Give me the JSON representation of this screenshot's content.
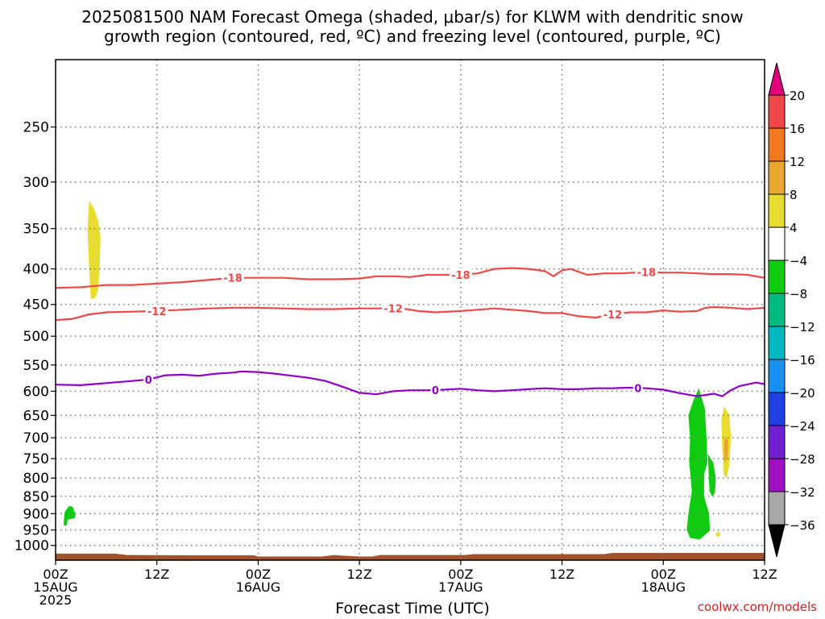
{
  "title": {
    "line1": "2025081500 NAM Forecast Omega (shaded, μbar/s) for KLWM with dendritic snow",
    "line2": "growth region (contoured, red, ºC) and freezing level (contoured, purple, ºC)"
  },
  "credit": "coolwx.com/models",
  "chart_data": {
    "type": "heatmap",
    "xlabel": "Forecast Time (UTC)",
    "ylabel": "",
    "x_unit": "forecast hour",
    "xlim": [
      0,
      84
    ],
    "y_scale": "log-pressure, inverted",
    "ylim_hPa": [
      1050,
      200
    ],
    "grid": true,
    "x_ticks": [
      {
        "x": 0,
        "labels": [
          "00Z",
          "15AUG",
          "2025"
        ]
      },
      {
        "x": 12,
        "labels": [
          "12Z"
        ]
      },
      {
        "x": 24,
        "labels": [
          "00Z",
          "16AUG"
        ]
      },
      {
        "x": 36,
        "labels": [
          "12Z"
        ]
      },
      {
        "x": 48,
        "labels": [
          "00Z",
          "17AUG"
        ]
      },
      {
        "x": 60,
        "labels": [
          "12Z"
        ]
      },
      {
        "x": 72,
        "labels": [
          "00Z",
          "18AUG"
        ]
      },
      {
        "x": 84,
        "labels": [
          "12Z"
        ]
      }
    ],
    "y_ticks": [
      250,
      300,
      350,
      400,
      450,
      500,
      550,
      600,
      650,
      700,
      750,
      800,
      850,
      900,
      950,
      1000
    ],
    "colorbar": {
      "unit": "μbar/s",
      "labels": [
        "20",
        "16",
        "12",
        "8",
        "4",
        "−4",
        "−8",
        "−12",
        "−16",
        "−20",
        "−24",
        "−28",
        "−32",
        "−36"
      ],
      "bins": [
        {
          "range": [
            20,
            null
          ],
          "color": "#e0007a"
        },
        {
          "range": [
            16,
            20
          ],
          "color": "#f04848"
        },
        {
          "range": [
            12,
            16
          ],
          "color": "#f07820"
        },
        {
          "range": [
            8,
            12
          ],
          "color": "#e8a830"
        },
        {
          "range": [
            4,
            8
          ],
          "color": "#e8dc30"
        },
        {
          "range": [
            -4,
            4
          ],
          "color": "#ffffff"
        },
        {
          "range": [
            -8,
            -4
          ],
          "color": "#10cc10"
        },
        {
          "range": [
            -12,
            -8
          ],
          "color": "#00bb80"
        },
        {
          "range": [
            -16,
            -12
          ],
          "color": "#00b8c0"
        },
        {
          "range": [
            -20,
            -16
          ],
          "color": "#1890f0"
        },
        {
          "range": [
            -24,
            -20
          ],
          "color": "#2040e0"
        },
        {
          "range": [
            -28,
            -24
          ],
          "color": "#7020d0"
        },
        {
          "range": [
            -32,
            -28
          ],
          "color": "#a010c0"
        },
        {
          "range": [
            -36,
            -32
          ],
          "color": "#a8a8a8"
        },
        {
          "range": [
            null,
            -36
          ],
          "color": "#000000"
        }
      ]
    },
    "contours": [
      {
        "value": -18,
        "label": "-18",
        "color": "#f04848",
        "label_x": [
          21,
          48,
          70
        ],
        "points": [
          [
            0,
            426
          ],
          [
            3,
            425
          ],
          [
            6,
            422
          ],
          [
            9,
            422
          ],
          [
            12,
            420
          ],
          [
            15,
            418
          ],
          [
            18,
            415
          ],
          [
            21,
            412
          ],
          [
            24,
            412
          ],
          [
            27,
            412
          ],
          [
            30,
            414
          ],
          [
            33,
            414
          ],
          [
            36,
            413
          ],
          [
            38,
            410
          ],
          [
            40,
            410
          ],
          [
            42,
            411
          ],
          [
            44,
            408
          ],
          [
            46,
            408
          ],
          [
            48,
            408
          ],
          [
            50,
            406
          ],
          [
            52,
            400
          ],
          [
            54,
            399
          ],
          [
            56,
            400
          ],
          [
            58,
            403
          ],
          [
            59,
            410
          ],
          [
            60,
            402
          ],
          [
            61,
            400
          ],
          [
            62,
            404
          ],
          [
            63,
            408
          ],
          [
            65,
            406
          ],
          [
            67,
            406
          ],
          [
            70,
            404
          ],
          [
            72,
            405
          ],
          [
            74,
            405
          ],
          [
            76,
            406
          ],
          [
            78,
            407
          ],
          [
            80,
            407
          ],
          [
            82,
            408
          ],
          [
            84,
            412
          ]
        ]
      },
      {
        "value": -12,
        "label": "-12",
        "color": "#f04848",
        "label_x": [
          12,
          40,
          66
        ],
        "points": [
          [
            0,
            474
          ],
          [
            2,
            472
          ],
          [
            4,
            465
          ],
          [
            6,
            462
          ],
          [
            9,
            461
          ],
          [
            12,
            460
          ],
          [
            15,
            458
          ],
          [
            18,
            456
          ],
          [
            21,
            455
          ],
          [
            24,
            455
          ],
          [
            27,
            456
          ],
          [
            30,
            457
          ],
          [
            33,
            457
          ],
          [
            36,
            456
          ],
          [
            39,
            456
          ],
          [
            41,
            456
          ],
          [
            43,
            460
          ],
          [
            45,
            462
          ],
          [
            48,
            460
          ],
          [
            50,
            458
          ],
          [
            52,
            456
          ],
          [
            54,
            458
          ],
          [
            56,
            460
          ],
          [
            58,
            463
          ],
          [
            60,
            463
          ],
          [
            62,
            468
          ],
          [
            64,
            470
          ],
          [
            66,
            465
          ],
          [
            68,
            462
          ],
          [
            70,
            462
          ],
          [
            72,
            459
          ],
          [
            74,
            461
          ],
          [
            76,
            460
          ],
          [
            77,
            455
          ],
          [
            78,
            454
          ],
          [
            80,
            455
          ],
          [
            82,
            457
          ],
          [
            84,
            455
          ]
        ]
      },
      {
        "value": 0,
        "label": "0",
        "color": "#9000c8",
        "label_x": [
          11,
          45,
          69
        ],
        "points": [
          [
            0,
            587
          ],
          [
            3,
            588
          ],
          [
            6,
            584
          ],
          [
            9,
            580
          ],
          [
            11,
            577
          ],
          [
            13,
            569
          ],
          [
            15,
            568
          ],
          [
            17,
            570
          ],
          [
            19,
            566
          ],
          [
            21,
            564
          ],
          [
            22,
            562
          ],
          [
            24,
            563
          ],
          [
            26,
            566
          ],
          [
            28,
            570
          ],
          [
            30,
            574
          ],
          [
            32,
            580
          ],
          [
            34,
            591
          ],
          [
            36,
            603
          ],
          [
            38,
            606
          ],
          [
            40,
            600
          ],
          [
            42,
            598
          ],
          [
            44,
            598
          ],
          [
            46,
            597
          ],
          [
            48,
            595
          ],
          [
            50,
            598
          ],
          [
            52,
            600
          ],
          [
            54,
            598
          ],
          [
            56,
            596
          ],
          [
            58,
            594
          ],
          [
            60,
            596
          ],
          [
            62,
            596
          ],
          [
            64,
            594
          ],
          [
            66,
            594
          ],
          [
            68,
            593
          ],
          [
            70,
            594
          ],
          [
            72,
            597
          ],
          [
            74,
            604
          ],
          [
            76,
            610
          ],
          [
            78,
            605
          ],
          [
            79,
            610
          ],
          [
            80,
            598
          ],
          [
            81,
            590
          ],
          [
            83,
            583
          ],
          [
            84,
            586
          ]
        ]
      }
    ],
    "shaded_regions": [
      {
        "name": "yellow-4-8-hour-4",
        "bin": "4 to 8",
        "color": "#e8dc30",
        "points": [
          [
            4.0,
            320
          ],
          [
            4.5,
            327
          ],
          [
            5.0,
            340
          ],
          [
            5.3,
            360
          ],
          [
            5.2,
            395
          ],
          [
            5.0,
            430
          ],
          [
            4.7,
            440
          ],
          [
            4.2,
            442
          ],
          [
            4.0,
            400
          ],
          [
            3.8,
            350
          ]
        ]
      },
      {
        "name": "green-hour-2",
        "bin": "-8 to -4",
        "color": "#10cc10",
        "points": [
          [
            1.0,
            922
          ],
          [
            1.1,
            895
          ],
          [
            1.6,
            878
          ],
          [
            2.0,
            880
          ],
          [
            2.3,
            900
          ],
          [
            2.3,
            912
          ],
          [
            1.9,
            915
          ],
          [
            1.4,
            918
          ],
          [
            1.3,
            935
          ],
          [
            1.0,
            935
          ]
        ]
      },
      {
        "name": "green-hour-76",
        "bin": "-8 to -4",
        "color": "#10cc10",
        "points": [
          [
            75.6,
            618
          ],
          [
            76.2,
            595
          ],
          [
            76.9,
            635
          ],
          [
            77.1,
            700
          ],
          [
            77.2,
            760
          ],
          [
            76.8,
            790
          ],
          [
            76.8,
            850
          ],
          [
            77.4,
            900
          ],
          [
            77.5,
            952
          ],
          [
            76.3,
            980
          ],
          [
            75.2,
            975
          ],
          [
            74.8,
            950
          ],
          [
            75.0,
            900
          ],
          [
            75.4,
            835
          ],
          [
            75.1,
            760
          ],
          [
            75.2,
            700
          ],
          [
            75.0,
            650
          ]
        ]
      },
      {
        "name": "green-hour-77-streak",
        "bin": "-8 to -4",
        "color": "#10cc10",
        "points": [
          [
            77.3,
            740
          ],
          [
            77.9,
            760
          ],
          [
            78.2,
            800
          ],
          [
            78.1,
            840
          ],
          [
            77.8,
            850
          ],
          [
            77.5,
            835
          ],
          [
            77.4,
            790
          ]
        ]
      },
      {
        "name": "yellow-4-8-hour-79",
        "bin": "4 to 8",
        "color": "#e8dc30",
        "points": [
          [
            79.2,
            632
          ],
          [
            79.8,
            648
          ],
          [
            80.0,
            700
          ],
          [
            79.8,
            765
          ],
          [
            79.5,
            800
          ],
          [
            79.2,
            790
          ],
          [
            79.0,
            720
          ],
          [
            78.9,
            660
          ]
        ]
      },
      {
        "name": "orange-8-12-hour-79",
        "bin": "8 to 12",
        "color": "#e8a830",
        "points": [
          [
            79.3,
            700
          ],
          [
            79.65,
            705
          ],
          [
            79.6,
            750
          ],
          [
            79.3,
            760
          ],
          [
            79.2,
            730
          ]
        ]
      },
      {
        "name": "yellow-4-8-hour-78",
        "bin": "4 to 8",
        "color": "#e8dc30",
        "points": [
          [
            78.3,
            958
          ],
          [
            78.7,
            958
          ],
          [
            78.65,
            970
          ],
          [
            78.3,
            970
          ]
        ]
      },
      {
        "name": "terrain",
        "bin": "below ground",
        "color": "#a0522d",
        "points": [
          [
            0,
            1028
          ],
          [
            7,
            1028
          ],
          [
            8.5,
            1033
          ],
          [
            17,
            1034
          ],
          [
            23.5,
            1034
          ],
          [
            24,
            1038
          ],
          [
            31.5,
            1038
          ],
          [
            33,
            1033
          ],
          [
            34,
            1035
          ],
          [
            36,
            1038
          ],
          [
            37.5,
            1038
          ],
          [
            38.5,
            1033
          ],
          [
            48.5,
            1033
          ],
          [
            49.5,
            1030
          ],
          [
            65,
            1030
          ],
          [
            66,
            1026
          ],
          [
            84,
            1026
          ],
          [
            84,
            1100
          ],
          [
            0,
            1100
          ]
        ]
      }
    ]
  }
}
